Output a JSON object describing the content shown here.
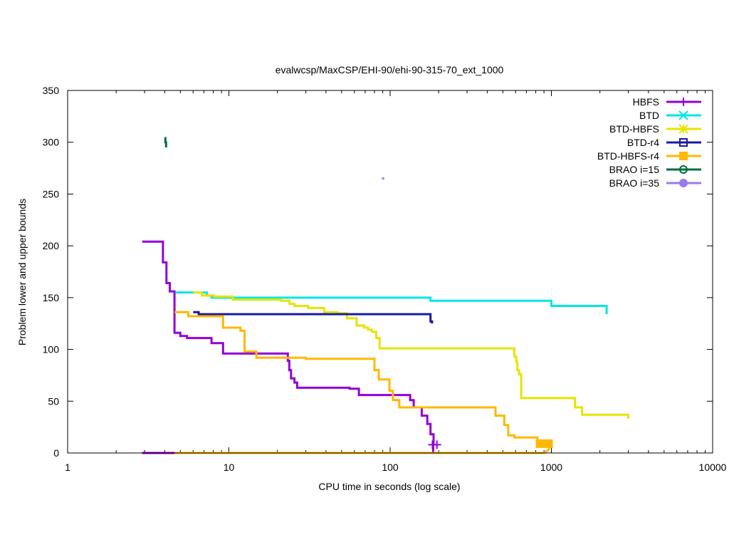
{
  "chart_data": {
    "type": "line",
    "title": "evalwcsp/MaxCSP/EHI-90/ehi-90-315-70_ext_1000",
    "xlabel": "CPU time in seconds (log scale)",
    "ylabel": "Problem lower and upper bounds",
    "xscale": "log",
    "xlim": [
      1,
      10000
    ],
    "ylim": [
      0,
      350
    ],
    "xticks": [
      1,
      10,
      100,
      1000,
      10000
    ],
    "xtick_labels": [
      "1",
      "10",
      "100",
      "1000",
      "10000"
    ],
    "yticks": [
      0,
      50,
      100,
      150,
      200,
      250,
      300,
      350
    ],
    "ytick_labels": [
      "0",
      "50",
      "100",
      "150",
      "200",
      "250",
      "300",
      "350"
    ],
    "grid": false,
    "legend_position": "top-right",
    "series": [
      {
        "name": "HBFS",
        "color": "#9400d3",
        "marker": "plus",
        "upper": [
          [
            2.9,
            204
          ],
          [
            3.9,
            204
          ],
          [
            3.9,
            184
          ],
          [
            4.1,
            184
          ],
          [
            4.1,
            164
          ],
          [
            4.3,
            164
          ],
          [
            4.3,
            156
          ],
          [
            4.6,
            156
          ],
          [
            4.6,
            116
          ],
          [
            5.0,
            116
          ],
          [
            5.0,
            113
          ],
          [
            5.5,
            113
          ],
          [
            5.5,
            111
          ],
          [
            7.8,
            111
          ],
          [
            7.8,
            106
          ],
          [
            9.2,
            106
          ],
          [
            9.2,
            96
          ],
          [
            23.2,
            96
          ],
          [
            23.2,
            89
          ],
          [
            23.7,
            89
          ],
          [
            23.7,
            80
          ],
          [
            24.3,
            80
          ],
          [
            24.3,
            72
          ],
          [
            25.5,
            72
          ],
          [
            25.5,
            68
          ],
          [
            26.5,
            68
          ],
          [
            26.5,
            63
          ],
          [
            56,
            63
          ],
          [
            56,
            62
          ],
          [
            64,
            62
          ],
          [
            64,
            56
          ],
          [
            133,
            56
          ],
          [
            133,
            51
          ],
          [
            140,
            51
          ],
          [
            140,
            44
          ],
          [
            157,
            44
          ],
          [
            157,
            36
          ],
          [
            170,
            36
          ],
          [
            170,
            28
          ],
          [
            178,
            28
          ],
          [
            178,
            18
          ],
          [
            186,
            18
          ],
          [
            186,
            8
          ]
        ],
        "lower": [
          [
            2.9,
            0
          ],
          [
            185,
            0
          ],
          [
            185,
            8
          ]
        ],
        "markers": [
          [
            183,
            8
          ],
          [
            195,
            8
          ]
        ]
      },
      {
        "name": "BTD",
        "color": "#00e5e5",
        "marker": "cross",
        "upper": [
          [
            4.7,
            155
          ],
          [
            7.3,
            155
          ],
          [
            7.3,
            152
          ],
          [
            7.8,
            152
          ],
          [
            7.8,
            150
          ],
          [
            178,
            150
          ],
          [
            178,
            147
          ],
          [
            1000,
            147
          ],
          [
            1000,
            142
          ],
          [
            2200,
            142
          ],
          [
            2200,
            134
          ]
        ],
        "lower": [],
        "markers": []
      },
      {
        "name": "BTD-HBFS",
        "color": "#e5e500",
        "marker": "star",
        "upper": [
          [
            6,
            155
          ],
          [
            6.8,
            155
          ],
          [
            6.8,
            152
          ],
          [
            8.1,
            152
          ],
          [
            8.1,
            151
          ],
          [
            10.6,
            151
          ],
          [
            10.6,
            148
          ],
          [
            21,
            148
          ],
          [
            21,
            147
          ],
          [
            23.7,
            147
          ],
          [
            23.7,
            144
          ],
          [
            25.5,
            144
          ],
          [
            25.5,
            142
          ],
          [
            31,
            142
          ],
          [
            31,
            140
          ],
          [
            39,
            140
          ],
          [
            39,
            136
          ],
          [
            47,
            136
          ],
          [
            47,
            135
          ],
          [
            54,
            135
          ],
          [
            54,
            130
          ],
          [
            62,
            130
          ],
          [
            62,
            123
          ],
          [
            69,
            123
          ],
          [
            69,
            121
          ],
          [
            73,
            121
          ],
          [
            73,
            119
          ],
          [
            77,
            119
          ],
          [
            77,
            117
          ],
          [
            82,
            117
          ],
          [
            82,
            111
          ],
          [
            86,
            111
          ],
          [
            86,
            101
          ],
          [
            590,
            101
          ],
          [
            590,
            93
          ],
          [
            605,
            93
          ],
          [
            605,
            88
          ],
          [
            615,
            88
          ],
          [
            615,
            80
          ],
          [
            630,
            80
          ],
          [
            630,
            76
          ],
          [
            650,
            76
          ],
          [
            650,
            53
          ],
          [
            1400,
            53
          ],
          [
            1400,
            44
          ],
          [
            1550,
            44
          ],
          [
            1550,
            37
          ],
          [
            3000,
            37
          ],
          [
            3000,
            33
          ]
        ],
        "lower": [],
        "markers": []
      },
      {
        "name": "BTD-r4",
        "color": "#1a1aa0",
        "marker": "square",
        "upper": [
          [
            6,
            136
          ],
          [
            6.5,
            136
          ],
          [
            6.5,
            134
          ],
          [
            178,
            134
          ],
          [
            178,
            127
          ],
          [
            182,
            127
          ],
          [
            182,
            125
          ]
        ],
        "lower": [],
        "markers": []
      },
      {
        "name": "BTD-HBFS-r4",
        "color": "#ffb800",
        "marker": "filled-square",
        "upper": [
          [
            4.6,
            136
          ],
          [
            5.6,
            136
          ],
          [
            5.6,
            132
          ],
          [
            9.2,
            132
          ],
          [
            9.2,
            121
          ],
          [
            11.8,
            121
          ],
          [
            11.8,
            118
          ],
          [
            12.5,
            118
          ],
          [
            12.5,
            98
          ],
          [
            14.8,
            98
          ],
          [
            14.8,
            92
          ],
          [
            30,
            92
          ],
          [
            30,
            91
          ],
          [
            80,
            91
          ],
          [
            80,
            80
          ],
          [
            85,
            80
          ],
          [
            85,
            71
          ],
          [
            99,
            71
          ],
          [
            99,
            60
          ],
          [
            104,
            60
          ],
          [
            104,
            51
          ],
          [
            114,
            51
          ],
          [
            114,
            44
          ],
          [
            450,
            44
          ],
          [
            450,
            36
          ],
          [
            510,
            36
          ],
          [
            510,
            27
          ],
          [
            540,
            27
          ],
          [
            540,
            17
          ],
          [
            590,
            17
          ],
          [
            590,
            15
          ],
          [
            820,
            15
          ],
          [
            820,
            8
          ]
        ],
        "lower": [
          [
            4.6,
            0
          ],
          [
            900,
            0
          ],
          [
            960,
            3
          ],
          [
            980,
            8
          ]
        ],
        "markers": [
          [
            850,
            9
          ],
          [
            960,
            9
          ]
        ]
      },
      {
        "name": "BRAO i=15",
        "color": "#006d3c",
        "marker": "circle",
        "upper": [
          [
            3.99,
            304
          ],
          [
            4.04,
            304
          ],
          [
            4.04,
            300
          ],
          [
            4.08,
            300
          ],
          [
            4.08,
            295
          ]
        ],
        "lower": [],
        "markers": []
      },
      {
        "name": "BRAO i=35",
        "color": "#9b78f0",
        "marker": "filled-circle",
        "upper": [
          [
            89,
            265
          ],
          [
            92,
            265
          ]
        ],
        "lower": [],
        "markers": []
      }
    ]
  }
}
